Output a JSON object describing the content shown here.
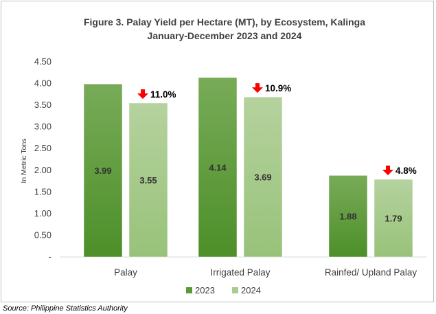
{
  "chart_data": {
    "type": "bar",
    "title": [
      "Figure 3.  Palay Yield per Hectare (MT), by Ecosystem,  Kalinga",
      "January-December 2023 and 2024"
    ],
    "ylabel": "In Metric Tons",
    "xlabel": "",
    "ylim": [
      0,
      4.5
    ],
    "yticks": [
      "-",
      "0.50",
      "1.00",
      "1.50",
      "2.00",
      "2.50",
      "3.00",
      "3.50",
      "4.00",
      "4.50"
    ],
    "categories": [
      "Palay",
      "Irrigated Palay",
      "Rainfed/ Upland Palay"
    ],
    "series": [
      {
        "name": "2023",
        "values": [
          3.99,
          4.14,
          1.88
        ],
        "labels": [
          "3.99",
          "4.14",
          "1.88"
        ],
        "color": "#5b9a35"
      },
      {
        "name": "2024",
        "values": [
          3.55,
          3.69,
          1.79
        ],
        "labels": [
          "3.55",
          "3.69",
          "1.79"
        ],
        "color": "#a8cc8c"
      }
    ],
    "changes": [
      {
        "label": "11.0%",
        "direction": "down"
      },
      {
        "label": "10.9%",
        "direction": "down"
      },
      {
        "label": "4.8%",
        "direction": "down"
      }
    ],
    "change_arrow_color": "#ff0000",
    "grid": false,
    "legend_position": "bottom"
  },
  "source": "Source: Philippine Statistics Authority"
}
